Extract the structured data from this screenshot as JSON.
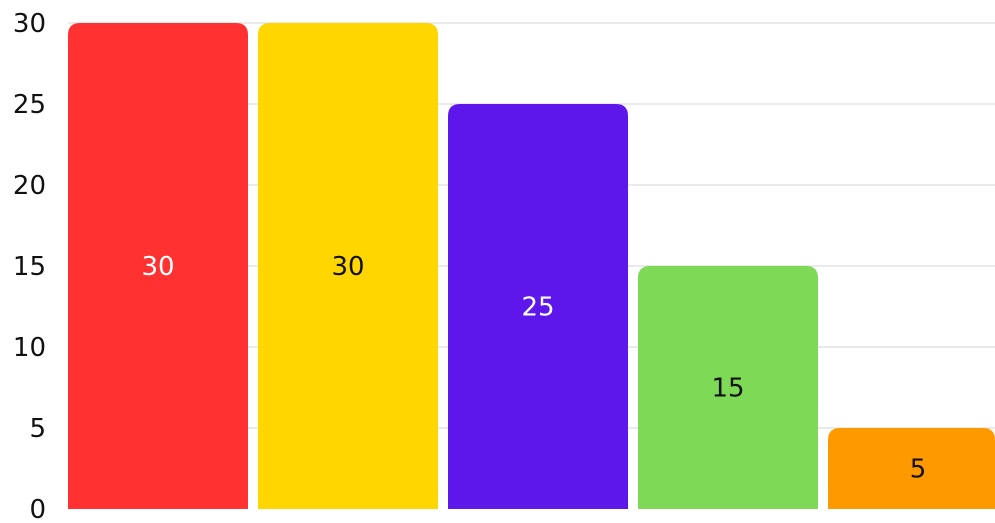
{
  "chart_data": {
    "type": "bar",
    "title": "",
    "xlabel": "",
    "ylabel": "",
    "ylim": [
      0,
      30
    ],
    "yticks": [
      0,
      5,
      10,
      15,
      20,
      25,
      30
    ],
    "grid": true,
    "legend": "none",
    "values": [
      30,
      30,
      25,
      15,
      5
    ],
    "value_labels": [
      "30",
      "30",
      "25",
      "15",
      "5"
    ],
    "colors": [
      "#ff3131",
      "#ffd600",
      "#5e17eb",
      "#7ed957",
      "#ff9900"
    ],
    "label_colors": [
      "#ffffff",
      "#111111",
      "#ffffff",
      "#111111",
      "#111111"
    ]
  }
}
